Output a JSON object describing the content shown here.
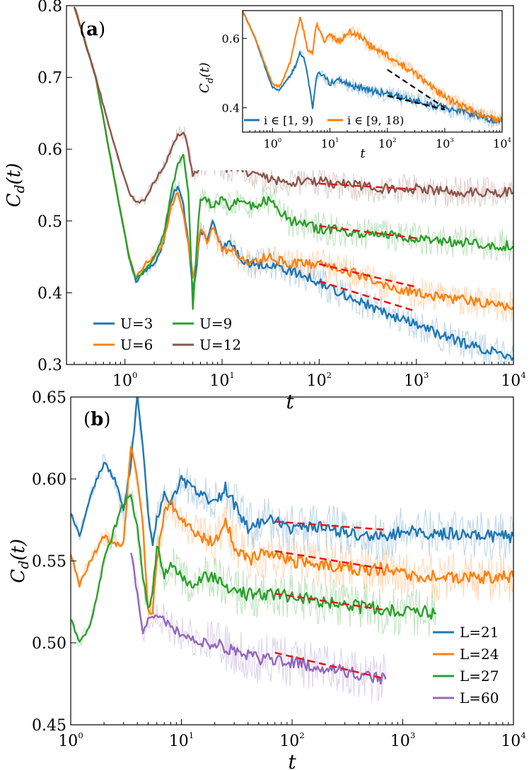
{
  "chart_data": [
    {
      "panel_label": "(a)",
      "type": "line",
      "x_scale": "log",
      "xlim": [
        0.25,
        10000
      ],
      "ylim": [
        0.3,
        0.8
      ],
      "xlabel": "t",
      "ylabel": "C_d(t)",
      "x_ticks": [
        "10^0",
        "10^1",
        "10^2",
        "10^3",
        "10^4"
      ],
      "y_ticks": [
        "0.3",
        "0.4",
        "0.5",
        "0.6",
        "0.7",
        "0.8"
      ],
      "legend_position": "lower-left",
      "series": [
        {
          "name": "U=3",
          "color": "#1f77b4",
          "x": [
            0.3,
            0.5,
            0.8,
            1.1,
            1.3,
            1.6,
            2.0,
            2.5,
            3.0,
            3.5,
            4.0,
            4.5,
            5.0,
            5.5,
            6.0,
            7.0,
            8.0,
            10,
            12,
            15,
            20,
            30,
            50,
            100,
            200,
            500,
            1000,
            3000,
            10000
          ],
          "y": [
            0.8,
            0.7,
            0.55,
            0.45,
            0.415,
            0.43,
            0.44,
            0.47,
            0.53,
            0.55,
            0.52,
            0.47,
            0.4,
            0.44,
            0.49,
            0.47,
            0.5,
            0.46,
            0.47,
            0.45,
            0.44,
            0.44,
            0.43,
            0.415,
            0.395,
            0.37,
            0.355,
            0.33,
            0.31
          ]
        },
        {
          "name": "U=6",
          "color": "#ff7f0e",
          "x": [
            0.3,
            0.5,
            0.8,
            1.1,
            1.3,
            1.6,
            2.0,
            2.5,
            3.0,
            3.5,
            4.0,
            4.5,
            5.0,
            5.5,
            6.0,
            7.0,
            8.0,
            10,
            12,
            15,
            20,
            30,
            50,
            100,
            200,
            500,
            1000,
            3000,
            10000
          ],
          "y": [
            0.8,
            0.7,
            0.55,
            0.45,
            0.42,
            0.44,
            0.45,
            0.47,
            0.52,
            0.54,
            0.51,
            0.47,
            0.42,
            0.45,
            0.49,
            0.47,
            0.49,
            0.46,
            0.46,
            0.45,
            0.44,
            0.45,
            0.44,
            0.44,
            0.43,
            0.41,
            0.4,
            0.39,
            0.38
          ]
        },
        {
          "name": "U=9",
          "color": "#2ca02c",
          "x": [
            0.3,
            0.5,
            0.8,
            1.1,
            1.3,
            1.6,
            2.0,
            2.5,
            3.0,
            3.5,
            4.0,
            4.5,
            5.0,
            5.5,
            6.0,
            7.0,
            8.0,
            10,
            12,
            15,
            20,
            30,
            50,
            100,
            200,
            500,
            1000,
            3000,
            10000
          ],
          "y": [
            0.8,
            0.7,
            0.55,
            0.45,
            0.42,
            0.43,
            0.45,
            0.48,
            0.54,
            0.58,
            0.59,
            0.54,
            0.38,
            0.47,
            0.53,
            0.53,
            0.52,
            0.53,
            0.52,
            0.53,
            0.52,
            0.53,
            0.5,
            0.49,
            0.485,
            0.48,
            0.475,
            0.47,
            0.465
          ]
        },
        {
          "name": "U=12",
          "color": "#8c564b",
          "x": [
            0.3,
            0.5,
            0.8,
            1.1,
            1.3,
            1.6,
            2.0,
            2.5,
            3.0,
            3.5,
            4.0,
            4.5,
            5.0,
            5.5,
            6.0,
            7.0,
            8.0,
            10,
            12,
            15,
            20,
            30,
            50,
            100,
            200,
            500,
            1000,
            3000,
            10000
          ],
          "y": [
            0.8,
            0.7,
            0.6,
            0.54,
            0.525,
            0.53,
            0.555,
            0.575,
            0.6,
            0.62,
            0.625,
            0.6,
            0.56,
            0.57,
            0.58,
            0.57,
            0.58,
            0.575,
            0.57,
            0.575,
            0.565,
            0.56,
            0.555,
            0.555,
            0.55,
            0.545,
            0.545,
            0.54,
            0.54
          ]
        }
      ],
      "fits": [
        {
          "color": "#e41a1c",
          "x": [
            100,
            1000
          ],
          "y": [
            0.552,
            0.544
          ]
        },
        {
          "color": "#e41a1c",
          "x": [
            100,
            1000
          ],
          "y": [
            0.493,
            0.476
          ]
        },
        {
          "color": "#e41a1c",
          "x": [
            100,
            1000
          ],
          "y": [
            0.44,
            0.408
          ]
        },
        {
          "color": "#e41a1c",
          "x": [
            100,
            1000
          ],
          "y": [
            0.416,
            0.374
          ]
        }
      ],
      "inset": {
        "type": "line",
        "x_scale": "log",
        "xlim": [
          0.3,
          10000
        ],
        "ylim": [
          0.33,
          0.68
        ],
        "xlabel": "t",
        "ylabel": "C_d(t)",
        "x_ticks": [
          "10^0",
          "10^1",
          "10^2",
          "10^3",
          "10^4"
        ],
        "y_ticks": [
          "0.4",
          "0.6"
        ],
        "series": [
          {
            "name": "i ∈ [1, 9)",
            "color": "#1f77b4",
            "x": [
              0.3,
              0.5,
              0.8,
              1.0,
              1.3,
              1.6,
              2.0,
              2.5,
              3.0,
              3.5,
              4.0,
              5.0,
              5.5,
              6.0,
              8.0,
              10,
              15,
              20,
              30,
              50,
              100,
              300,
              1000,
              3000,
              10000
            ],
            "y": [
              0.68,
              0.6,
              0.5,
              0.46,
              0.45,
              0.47,
              0.49,
              0.52,
              0.56,
              0.54,
              0.5,
              0.4,
              0.46,
              0.5,
              0.49,
              0.47,
              0.48,
              0.47,
              0.46,
              0.45,
              0.44,
              0.42,
              0.4,
              0.38,
              0.36
            ]
          },
          {
            "name": "i ∈ [9, 18)",
            "color": "#ff7f0e",
            "x": [
              0.3,
              0.5,
              0.8,
              1.0,
              1.3,
              1.6,
              2.0,
              2.5,
              3.0,
              3.5,
              4.0,
              5.0,
              5.5,
              6.0,
              8.0,
              10,
              15,
              20,
              30,
              50,
              100,
              300,
              1000,
              3000,
              10000
            ],
            "y": [
              0.68,
              0.6,
              0.51,
              0.47,
              0.46,
              0.49,
              0.53,
              0.6,
              0.66,
              0.62,
              0.57,
              0.56,
              0.62,
              0.64,
              0.59,
              0.61,
              0.59,
              0.62,
              0.61,
              0.58,
              0.55,
              0.5,
              0.43,
              0.39,
              0.36
            ]
          }
        ],
        "fits": [
          {
            "color": "#000000",
            "x": [
              100,
              1000
            ],
            "y": [
              0.51,
              0.4
            ]
          },
          {
            "color": "#000000",
            "x": [
              100,
              1000
            ],
            "y": [
              0.435,
              0.395
            ]
          }
        ]
      }
    },
    {
      "panel_label": "(b)",
      "type": "line",
      "x_scale": "log",
      "xlim": [
        1,
        10000
      ],
      "ylim": [
        0.45,
        0.65
      ],
      "xlabel": "t",
      "ylabel": "C_d(t)",
      "x_ticks": [
        "10^0",
        "10^1",
        "10^2",
        "10^3",
        "10^4"
      ],
      "y_ticks": [
        "0.45",
        "0.50",
        "0.55",
        "0.60",
        "0.65"
      ],
      "legend_position": "lower-right",
      "series": [
        {
          "name": "L=21",
          "color": "#1f77b4",
          "x": [
            1.0,
            1.2,
            1.5,
            2.0,
            2.5,
            3.0,
            3.5,
            4.0,
            4.5,
            5.0,
            5.5,
            6.0,
            7.0,
            8.0,
            10,
            12,
            15,
            20,
            25,
            30,
            40,
            60,
            100,
            200,
            400,
            700,
            1000,
            2000,
            5000,
            10000
          ],
          "y": [
            0.58,
            0.565,
            0.59,
            0.61,
            0.6,
            0.58,
            0.61,
            0.65,
            0.62,
            0.58,
            0.56,
            0.575,
            0.59,
            0.585,
            0.6,
            0.595,
            0.59,
            0.585,
            0.595,
            0.585,
            0.57,
            0.575,
            0.57,
            0.57,
            0.565,
            0.565,
            0.568,
            0.567,
            0.566,
            0.565
          ]
        },
        {
          "name": "L=24",
          "color": "#ff7f0e",
          "x": [
            1.0,
            1.2,
            1.5,
            2.0,
            2.5,
            3.0,
            3.5,
            4.0,
            4.5,
            5.0,
            5.5,
            6.0,
            7.0,
            8.0,
            10,
            12,
            15,
            20,
            25,
            30,
            40,
            60,
            100,
            200,
            400,
            700,
            1000,
            2000,
            5000,
            10000
          ],
          "y": [
            0.555,
            0.535,
            0.55,
            0.565,
            0.56,
            0.56,
            0.62,
            0.6,
            0.57,
            0.52,
            0.52,
            0.55,
            0.58,
            0.585,
            0.575,
            0.57,
            0.565,
            0.56,
            0.575,
            0.56,
            0.55,
            0.555,
            0.55,
            0.548,
            0.545,
            0.545,
            0.542,
            0.54,
            0.54,
            0.54
          ]
        },
        {
          "name": "L=27",
          "color": "#2ca02c",
          "x": [
            1.0,
            1.2,
            1.5,
            2.0,
            2.5,
            3.0,
            3.5,
            4.0,
            4.5,
            5.0,
            5.5,
            6.0,
            7.0,
            8.0,
            10,
            12,
            15,
            20,
            25,
            30,
            40,
            60,
            100,
            200,
            400,
            700,
            1000,
            2000
          ],
          "y": [
            0.515,
            0.5,
            0.51,
            0.55,
            0.57,
            0.585,
            0.59,
            0.57,
            0.54,
            0.52,
            0.53,
            0.56,
            0.54,
            0.55,
            0.54,
            0.535,
            0.54,
            0.54,
            0.535,
            0.53,
            0.53,
            0.53,
            0.528,
            0.525,
            0.522,
            0.52,
            0.52,
            0.518
          ]
        },
        {
          "name": "L=60",
          "color": "#9467bd",
          "x": [
            3.5,
            4.0,
            4.5,
            5.0,
            6.0,
            8.0,
            10,
            15,
            20,
            30,
            50,
            70,
            100,
            200,
            400,
            700
          ],
          "y": [
            0.557,
            0.53,
            0.505,
            0.515,
            0.518,
            0.51,
            0.505,
            0.5,
            0.5,
            0.495,
            0.49,
            0.49,
            0.488,
            0.485,
            0.48,
            0.478
          ]
        }
      ],
      "fits": [
        {
          "color": "#e41a1c",
          "x": [
            70,
            700
          ],
          "y": [
            0.574,
            0.569
          ]
        },
        {
          "color": "#e41a1c",
          "x": [
            70,
            700
          ],
          "y": [
            0.556,
            0.545
          ]
        },
        {
          "color": "#e41a1c",
          "x": [
            70,
            700
          ],
          "y": [
            0.53,
            0.52
          ]
        },
        {
          "color": "#e41a1c",
          "x": [
            70,
            700
          ],
          "y": [
            0.494,
            0.478
          ]
        }
      ]
    }
  ]
}
